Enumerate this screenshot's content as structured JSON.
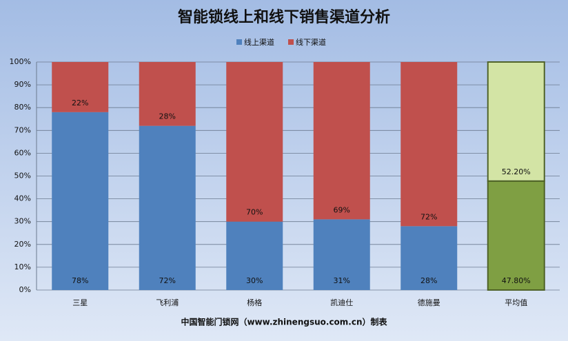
{
  "chart_data": {
    "type": "stacked_bar_100",
    "title": "智能锁线上和线下销售渠道分析",
    "footnote": "中国智能门锁网（www.zhinengsuo.com.cn）制表",
    "categories": [
      "三星",
      "飞利浦",
      "杨格",
      "凯迪仕",
      "德施曼",
      "平均值"
    ],
    "series": [
      {
        "name": "线上渠道",
        "color": "#4f81bd",
        "colors": [
          "#4f81bd",
          "#4f81bd",
          "#4f81bd",
          "#4f81bd",
          "#4f81bd",
          "#7f9f43"
        ],
        "values": [
          78,
          72,
          30,
          31,
          28,
          47.8
        ],
        "value_labels": [
          "78%",
          "72%",
          "30%",
          "31%",
          "28%",
          "47.80%"
        ]
      },
      {
        "name": "线下渠道",
        "color": "#c0504d",
        "colors": [
          "#c0504d",
          "#c0504d",
          "#c0504d",
          "#c0504d",
          "#c0504d",
          "#d3e4a5"
        ],
        "values": [
          22,
          28,
          70,
          69,
          72,
          52.2
        ],
        "value_labels": [
          "22%",
          "28%",
          "70%",
          "69%",
          "72%",
          "52.20%"
        ]
      }
    ],
    "ylim": [
      0,
      100
    ],
    "yticks": [
      {
        "value": 0,
        "label": "0%"
      },
      {
        "value": 10,
        "label": "10%"
      },
      {
        "value": 20,
        "label": "20%"
      },
      {
        "value": 30,
        "label": "30%"
      },
      {
        "value": 40,
        "label": "40%"
      },
      {
        "value": 50,
        "label": "50%"
      },
      {
        "value": 60,
        "label": "60%"
      },
      {
        "value": 70,
        "label": "70%"
      },
      {
        "value": 80,
        "label": "80%"
      },
      {
        "value": 90,
        "label": "90%"
      },
      {
        "value": 100,
        "label": "100%"
      }
    ],
    "grid": true,
    "legend": "top"
  }
}
